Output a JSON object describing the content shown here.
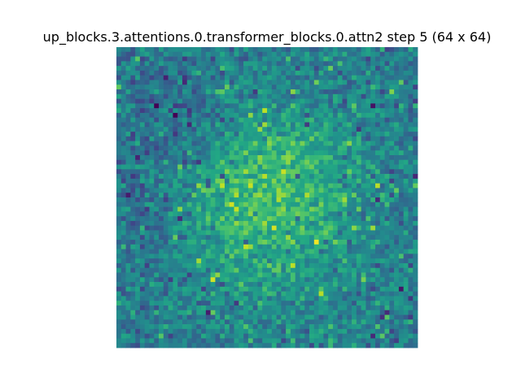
{
  "chart_data": {
    "type": "heatmap",
    "title": "up_blocks.3.attentions.0.transformer_blocks.0.attn2 step 5 (64 x 64)",
    "rows": 64,
    "cols": 64,
    "colormap": "viridis",
    "value_range": [
      0,
      1
    ],
    "axes_visible": false,
    "colorbar": false,
    "description_of_pattern": "noisy attention map, brighter central blob",
    "center_of_brightness": [
      32,
      32
    ],
    "seed": 5
  }
}
